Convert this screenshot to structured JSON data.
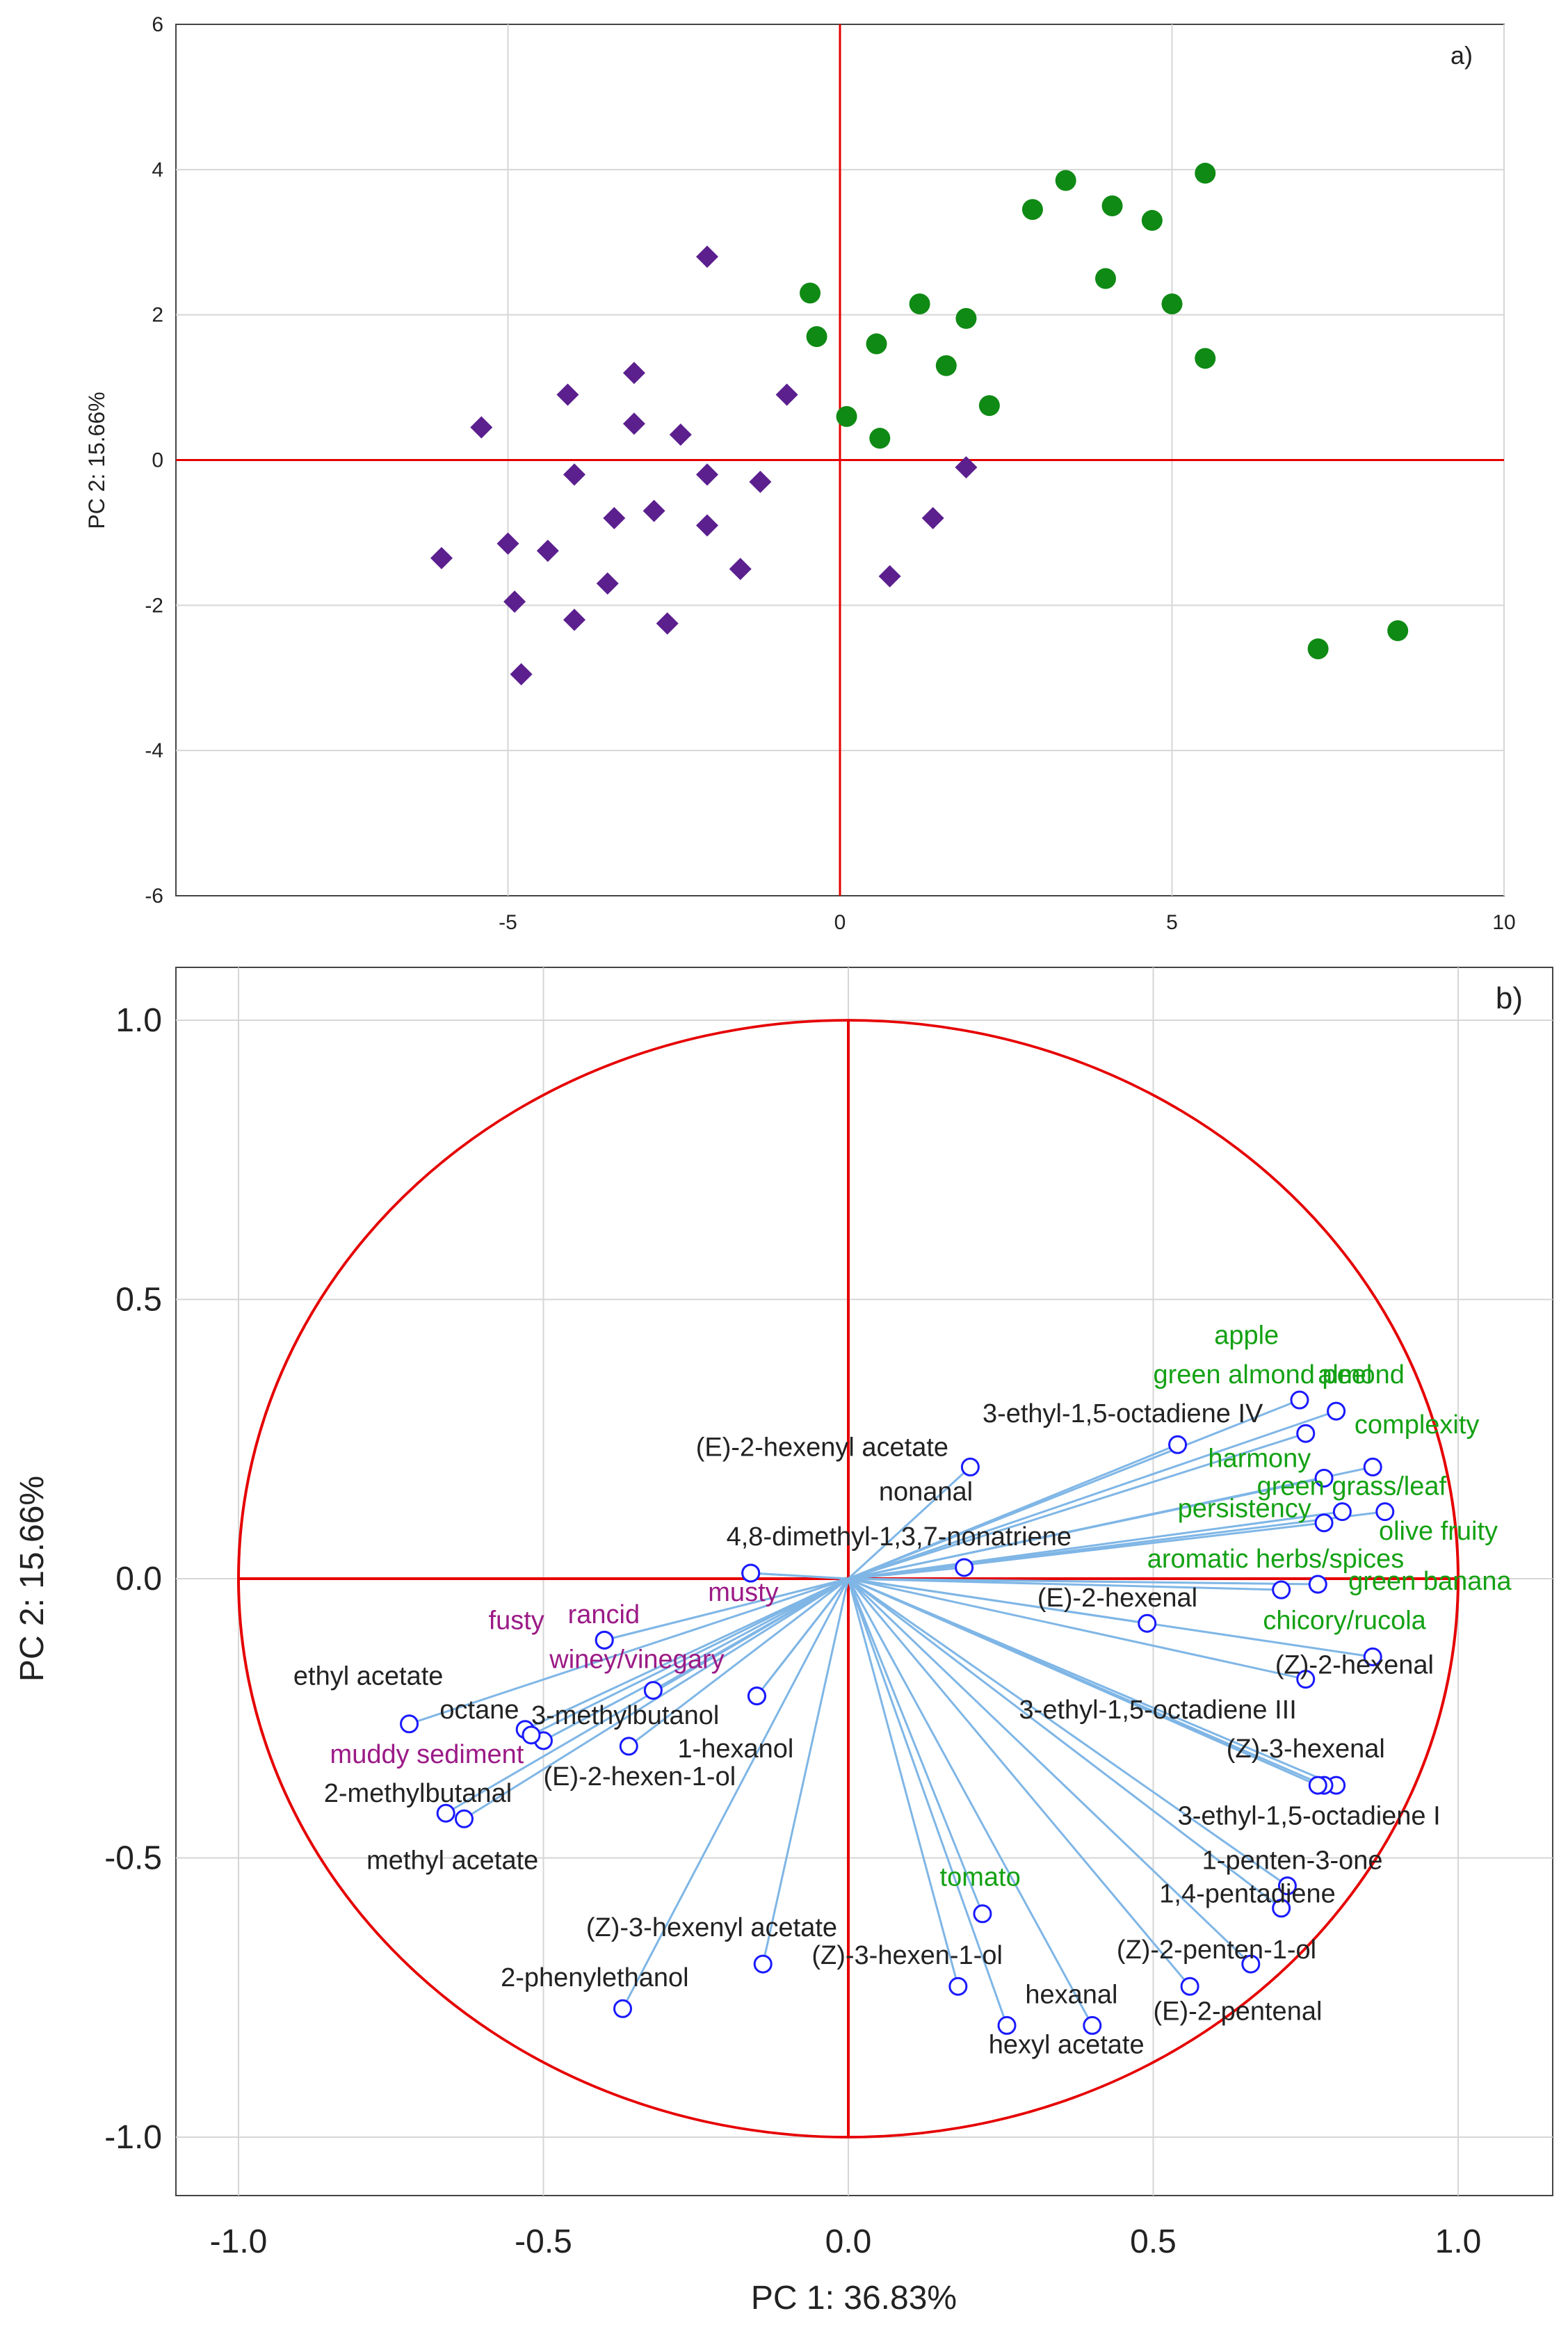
{
  "colors": {
    "group_a": "#5b1f8e",
    "group_b": "#0f8a14",
    "axis_line": "#e60000",
    "vector": "#7fb6e6",
    "point": "#1a1aff",
    "grid": "#d6d6d6",
    "label_dark": "#222222",
    "label_green": "#14a114",
    "label_purple": "#9b1a86"
  },
  "chart_data": [
    {
      "type": "scatter",
      "panel": "a)",
      "xlabel": "",
      "ylabel": "PC 2: 15.66%",
      "xlim": [
        -10,
        10
      ],
      "ylim": [
        -6,
        6
      ],
      "xticks": [
        -5,
        0,
        5,
        10
      ],
      "yticks": [
        6,
        4,
        2,
        0,
        -2,
        -4,
        -6
      ],
      "grid": true,
      "reference_lines": {
        "x": 0,
        "y": 0
      },
      "series": [
        {
          "name": "group_a",
          "marker": "diamond",
          "points": [
            [
              -2.0,
              2.8
            ],
            [
              -3.1,
              1.2
            ],
            [
              -4.1,
              0.9
            ],
            [
              -0.8,
              0.9
            ],
            [
              -5.4,
              0.45
            ],
            [
              -3.1,
              0.5
            ],
            [
              -2.4,
              0.35
            ],
            [
              -4.0,
              -0.2
            ],
            [
              -2.0,
              -0.2
            ],
            [
              -1.2,
              -0.3
            ],
            [
              1.9,
              -0.1
            ],
            [
              -2.8,
              -0.7
            ],
            [
              -3.4,
              -0.8
            ],
            [
              -2.0,
              -0.9
            ],
            [
              1.4,
              -0.8
            ],
            [
              -6.0,
              -1.35
            ],
            [
              -5.0,
              -1.15
            ],
            [
              -4.4,
              -1.25
            ],
            [
              -1.5,
              -1.5
            ],
            [
              0.75,
              -1.6
            ],
            [
              -3.5,
              -1.7
            ],
            [
              -4.9,
              -1.95
            ],
            [
              -4.0,
              -2.2
            ],
            [
              -2.6,
              -2.25
            ],
            [
              -4.8,
              -2.95
            ]
          ]
        },
        {
          "name": "group_b",
          "marker": "circle",
          "points": [
            [
              5.5,
              3.95
            ],
            [
              3.4,
              3.85
            ],
            [
              2.9,
              3.45
            ],
            [
              4.1,
              3.5
            ],
            [
              4.7,
              3.3
            ],
            [
              4.0,
              2.5
            ],
            [
              -0.45,
              2.3
            ],
            [
              1.2,
              2.15
            ],
            [
              1.9,
              1.95
            ],
            [
              5.0,
              2.15
            ],
            [
              -0.35,
              1.7
            ],
            [
              0.55,
              1.6
            ],
            [
              1.6,
              1.3
            ],
            [
              5.5,
              1.4
            ],
            [
              2.25,
              0.75
            ],
            [
              0.1,
              0.6
            ],
            [
              0.6,
              0.3
            ],
            [
              7.2,
              -2.6
            ],
            [
              8.4,
              -2.35
            ]
          ]
        }
      ]
    },
    {
      "type": "scatter",
      "panel": "b)",
      "xlabel": "PC 1: 36.83%",
      "ylabel": "PC 2: 15.66%",
      "xlim": [
        -1.1,
        1.1
      ],
      "ylim": [
        -1.1,
        1.1
      ],
      "xticks": [
        "-1.0",
        "-0.5",
        "0.0",
        "0.5",
        "1.0"
      ],
      "yticks": [
        "1.0",
        "0.5",
        "0.0",
        "-0.5",
        "-1.0"
      ],
      "grid": true,
      "unit_circle": true,
      "reference_lines": {
        "x": 0,
        "y": 0
      },
      "loadings": [
        {
          "label": "apple",
          "x": 0.74,
          "y": 0.32,
          "group": "green",
          "label_xy": [
            0.6,
            0.42
          ]
        },
        {
          "label": "green almond peel",
          "x": 0.75,
          "y": 0.26,
          "group": "green",
          "label_xy": [
            0.5,
            0.35
          ]
        },
        {
          "label": "almond",
          "x": 0.8,
          "y": 0.3,
          "group": "green",
          "label_xy": [
            0.77,
            0.35
          ]
        },
        {
          "label": "3-ethyl-1,5-octadiene IV",
          "x": 0.54,
          "y": 0.24,
          "group": "dark",
          "label_xy": [
            0.22,
            0.28
          ]
        },
        {
          "label": "complexity",
          "x": 0.86,
          "y": 0.2,
          "group": "green",
          "label_xy": [
            0.83,
            0.26
          ]
        },
        {
          "label": "harmony",
          "x": 0.78,
          "y": 0.18,
          "group": "green",
          "label_xy": [
            0.59,
            0.2
          ]
        },
        {
          "label": "green grass/leaf",
          "x": 0.81,
          "y": 0.12,
          "group": "green",
          "label_xy": [
            0.67,
            0.15
          ]
        },
        {
          "label": "persistency",
          "x": 0.78,
          "y": 0.1,
          "group": "green",
          "label_xy": [
            0.54,
            0.11
          ]
        },
        {
          "label": "olive fruity",
          "x": 0.88,
          "y": 0.12,
          "group": "green",
          "label_xy": [
            0.87,
            0.07
          ]
        },
        {
          "label": "aromatic herbs/spices",
          "x": 0.71,
          "y": -0.02,
          "group": "green",
          "label_xy": [
            0.49,
            0.02
          ]
        },
        {
          "label": "green banana",
          "x": 0.77,
          "y": -0.01,
          "group": "green",
          "label_xy": [
            0.82,
            -0.02
          ]
        },
        {
          "label": "chicory/rucola",
          "x": 0.86,
          "y": -0.14,
          "group": "green",
          "label_xy": [
            0.68,
            -0.09
          ]
        },
        {
          "label": "(E)-2-hexenyl acetate",
          "x": 0.2,
          "y": 0.2,
          "group": "dark",
          "label_xy": [
            -0.25,
            0.22
          ]
        },
        {
          "label": "nonanal",
          "x": 0.19,
          "y": 0.02,
          "group": "dark",
          "label_xy": [
            0.05,
            0.14
          ]
        },
        {
          "label": "4,8-dimethyl-1,3,7-nonatriene",
          "x": -0.16,
          "y": 0.01,
          "group": "dark",
          "label_xy": [
            -0.2,
            0.06
          ]
        },
        {
          "label": "(E)-2-hexenal",
          "x": 0.49,
          "y": -0.08,
          "group": "dark",
          "label_xy": [
            0.31,
            -0.05
          ]
        },
        {
          "label": "(Z)-2-hexenal",
          "x": 0.75,
          "y": -0.18,
          "group": "dark",
          "label_xy": [
            0.7,
            -0.17
          ]
        },
        {
          "label": "3-ethyl-1,5-octadiene III",
          "x": 0.8,
          "y": -0.37,
          "group": "dark",
          "label_xy": [
            0.28,
            -0.25
          ]
        },
        {
          "label": "(Z)-3-hexenal",
          "x": 0.78,
          "y": -0.37,
          "group": "dark",
          "label_xy": [
            0.62,
            -0.32
          ]
        },
        {
          "label": "3-ethyl-1,5-octadiene I",
          "x": 0.77,
          "y": -0.37,
          "group": "dark",
          "label_xy": [
            0.54,
            -0.44
          ]
        },
        {
          "label": "1-penten-3-one",
          "x": 0.72,
          "y": -0.55,
          "group": "dark",
          "label_xy": [
            0.58,
            -0.52
          ]
        },
        {
          "label": "1,4-pentadiene",
          "x": 0.71,
          "y": -0.59,
          "group": "dark",
          "label_xy": [
            0.51,
            -0.58
          ]
        },
        {
          "label": "(Z)-2-penten-1-ol",
          "x": 0.66,
          "y": -0.69,
          "group": "dark",
          "label_xy": [
            0.44,
            -0.68
          ]
        },
        {
          "label": "(E)-2-pentenal",
          "x": 0.56,
          "y": -0.73,
          "group": "dark",
          "label_xy": [
            0.5,
            -0.79
          ]
        },
        {
          "label": "hexanal",
          "x": 0.4,
          "y": -0.8,
          "group": "dark",
          "label_xy": [
            0.29,
            -0.76
          ]
        },
        {
          "label": "hexyl acetate",
          "x": 0.26,
          "y": -0.8,
          "group": "dark",
          "label_xy": [
            0.23,
            -0.85
          ]
        },
        {
          "label": "(Z)-3-hexen-1-ol",
          "x": 0.18,
          "y": -0.73,
          "group": "dark",
          "label_xy": [
            -0.06,
            -0.69
          ]
        },
        {
          "label": "tomato",
          "x": 0.22,
          "y": -0.6,
          "group": "green",
          "label_xy": [
            0.15,
            -0.55
          ]
        },
        {
          "label": "(Z)-3-hexenyl acetate",
          "x": -0.14,
          "y": -0.69,
          "group": "dark",
          "label_xy": [
            -0.43,
            -0.64
          ]
        },
        {
          "label": "2-phenylethanol",
          "x": -0.37,
          "y": -0.77,
          "group": "dark",
          "label_xy": [
            -0.57,
            -0.73
          ]
        },
        {
          "label": "musty",
          "x": -0.16,
          "y": 0.01,
          "group": "purple",
          "label_xy": [
            -0.23,
            -0.04
          ]
        },
        {
          "label": "fusty",
          "x": -0.4,
          "y": -0.11,
          "group": "purple",
          "label_xy": [
            -0.59,
            -0.09
          ]
        },
        {
          "label": "rancid",
          "x": -0.4,
          "y": -0.11,
          "group": "purple",
          "label_xy": [
            -0.46,
            -0.08
          ]
        },
        {
          "label": "winey/vinegary",
          "x": -0.32,
          "y": -0.2,
          "group": "purple",
          "label_xy": [
            -0.49,
            -0.16
          ]
        },
        {
          "label": "3-methylbutanol",
          "x": -0.15,
          "y": -0.21,
          "group": "dark",
          "label_xy": [
            -0.52,
            -0.26
          ]
        },
        {
          "label": "1-hexanol",
          "x": -0.15,
          "y": -0.21,
          "group": "dark",
          "label_xy": [
            -0.28,
            -0.32
          ]
        },
        {
          "label": "ethyl acetate",
          "x": -0.72,
          "y": -0.26,
          "group": "dark",
          "label_xy": [
            -0.91,
            -0.19
          ]
        },
        {
          "label": "octane",
          "x": -0.53,
          "y": -0.27,
          "group": "dark",
          "label_xy": [
            -0.67,
            -0.25
          ]
        },
        {
          "label": "muddy sediment",
          "x": -0.5,
          "y": -0.29,
          "group": "purple",
          "label_xy": [
            -0.85,
            -0.33
          ]
        },
        {
          "label": "(E)-2-hexen-1-ol",
          "x": -0.36,
          "y": -0.3,
          "group": "dark",
          "label_xy": [
            -0.5,
            -0.37
          ]
        },
        {
          "label": "2-methylbutanal",
          "x": -0.66,
          "y": -0.42,
          "group": "dark",
          "label_xy": [
            -0.86,
            -0.4
          ]
        },
        {
          "label": "methyl acetate",
          "x": -0.63,
          "y": -0.43,
          "group": "dark",
          "label_xy": [
            -0.79,
            -0.52
          ]
        },
        {
          "label": "",
          "x": -0.52,
          "y": -0.28,
          "group": "dark",
          "label_xy": [
            0,
            0
          ]
        }
      ]
    }
  ]
}
